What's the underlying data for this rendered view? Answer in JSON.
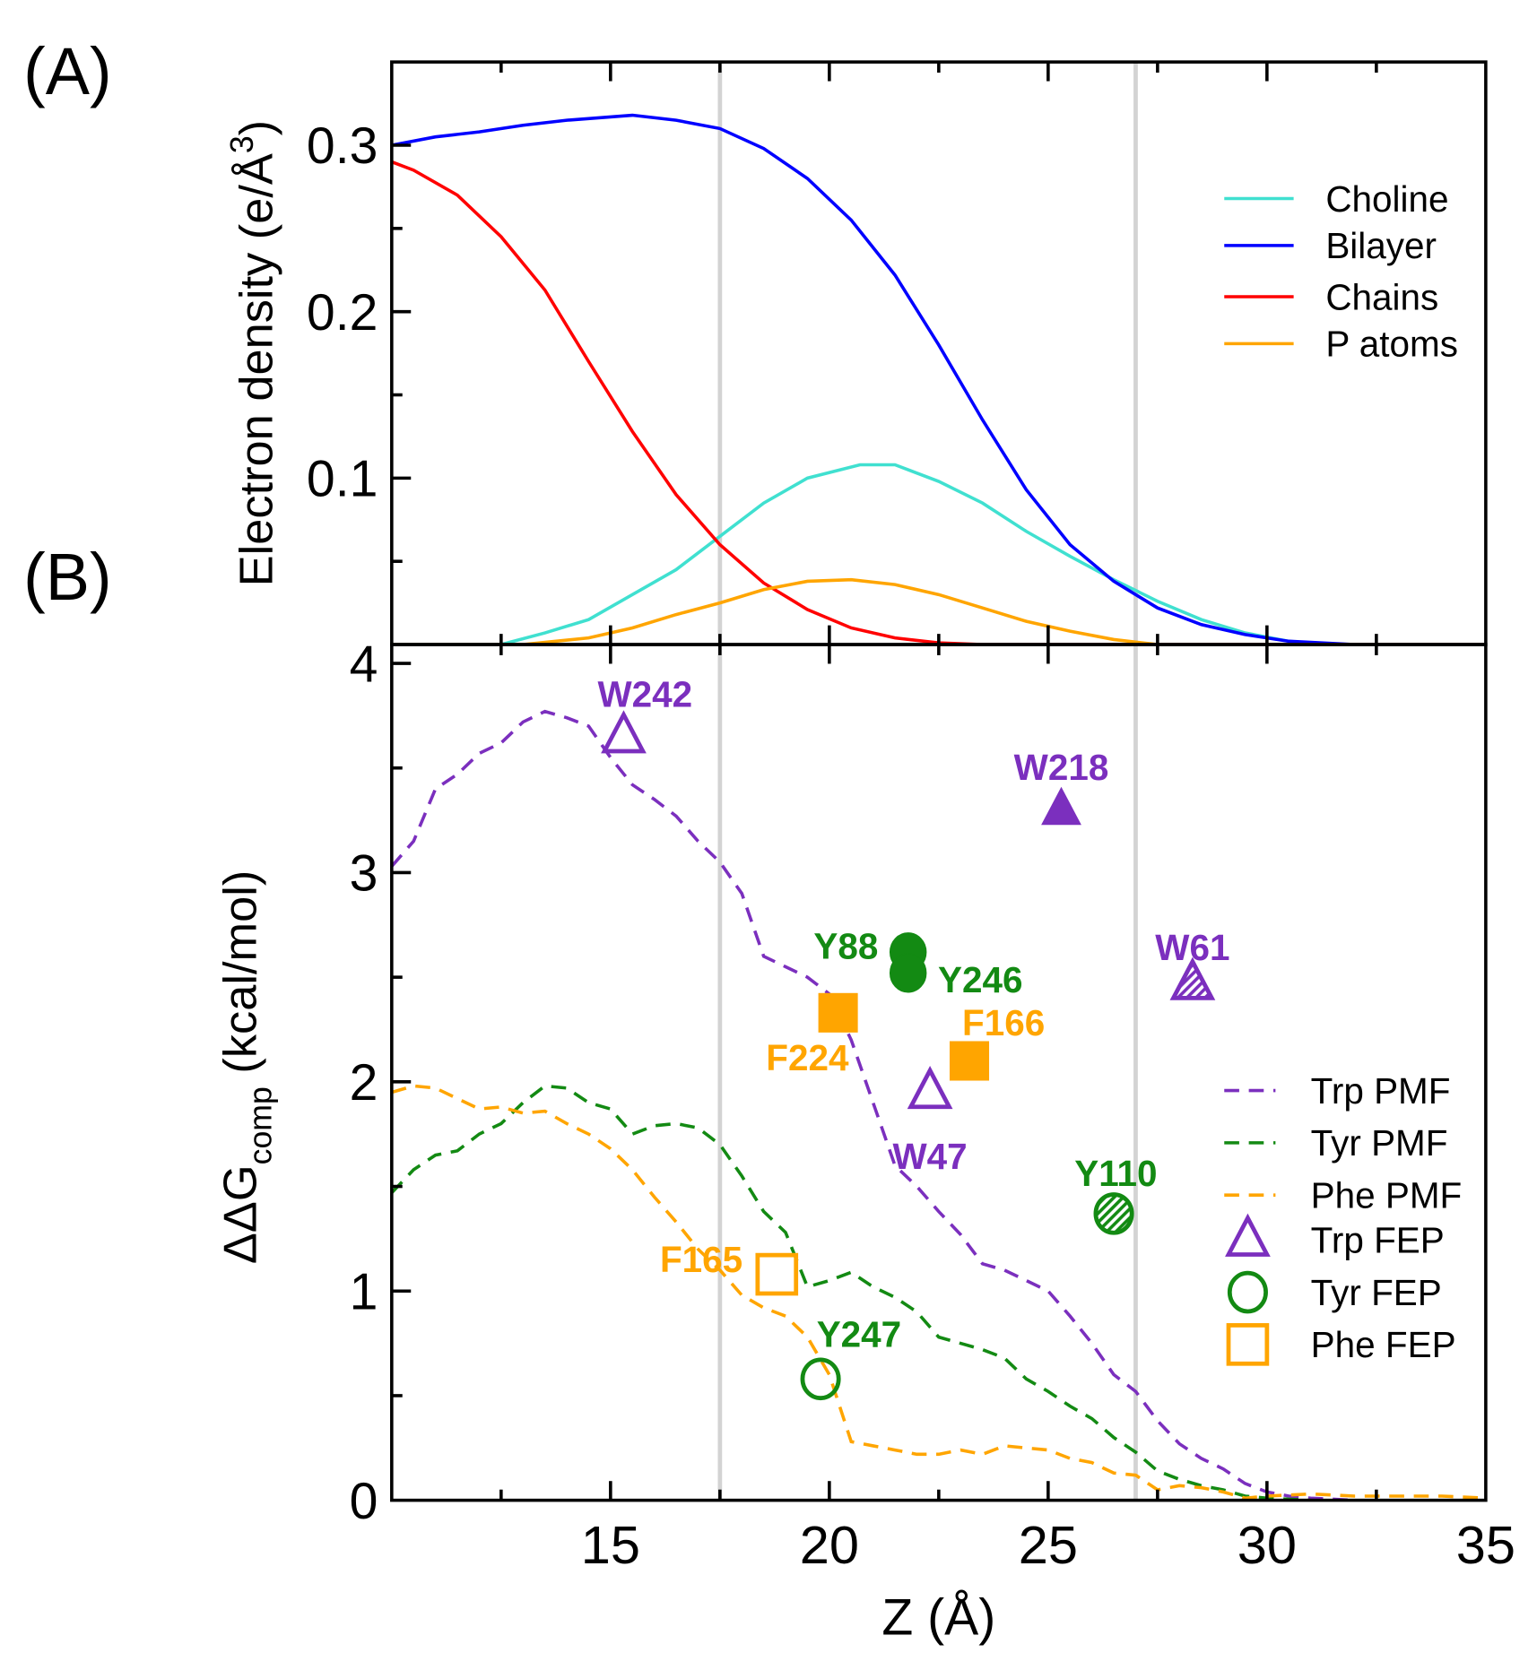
{
  "chart_data": [
    {
      "panel_label": "(A)",
      "type": "line",
      "ylabel": "Electron density (e/Å",
      "ylabel_sup": "3",
      "ylabel_close": ")",
      "xlim": [
        10,
        35
      ],
      "ylim": [
        0,
        0.35
      ],
      "yticks": [
        0.1,
        0.2,
        0.3
      ],
      "ytick_labels": [
        "0.1",
        "0.2",
        "0.3"
      ],
      "vertical_lines": [
        17.5,
        27
      ],
      "legend_position": "top-right",
      "series": [
        {
          "name": "Choline",
          "color": "#40e0d0",
          "points": [
            [
              10,
              0
            ],
            [
              12.5,
              0
            ],
            [
              13.5,
              0.007
            ],
            [
              14.5,
              0.015
            ],
            [
              15.5,
              0.03
            ],
            [
              16.5,
              0.045
            ],
            [
              17.5,
              0.065
            ],
            [
              18.5,
              0.085
            ],
            [
              19.5,
              0.1
            ],
            [
              20.7,
              0.108
            ],
            [
              21.5,
              0.108
            ],
            [
              22.5,
              0.098
            ],
            [
              23.5,
              0.085
            ],
            [
              24.5,
              0.068
            ],
            [
              25.5,
              0.053
            ],
            [
              26.5,
              0.039
            ],
            [
              27.5,
              0.026
            ],
            [
              28.5,
              0.015
            ],
            [
              29.5,
              0.007
            ],
            [
              30.5,
              0.002
            ],
            [
              31.5,
              0
            ],
            [
              35,
              0
            ]
          ]
        },
        {
          "name": "Bilayer",
          "color": "#0000ff",
          "points": [
            [
              10,
              0.3
            ],
            [
              11,
              0.305
            ],
            [
              12,
              0.308
            ],
            [
              13,
              0.312
            ],
            [
              14,
              0.315
            ],
            [
              15.5,
              0.318
            ],
            [
              16.5,
              0.315
            ],
            [
              17.5,
              0.31
            ],
            [
              18.5,
              0.298
            ],
            [
              19.5,
              0.28
            ],
            [
              20.5,
              0.255
            ],
            [
              21.5,
              0.222
            ],
            [
              22.5,
              0.18
            ],
            [
              23.5,
              0.135
            ],
            [
              24.5,
              0.093
            ],
            [
              25.5,
              0.06
            ],
            [
              26.5,
              0.038
            ],
            [
              27.5,
              0.022
            ],
            [
              28.5,
              0.012
            ],
            [
              29.5,
              0.006
            ],
            [
              30.5,
              0.002
            ],
            [
              32,
              0
            ],
            [
              35,
              0
            ]
          ]
        },
        {
          "name": "Chains",
          "color": "#ff0000",
          "points": [
            [
              10,
              0.29
            ],
            [
              10.5,
              0.285
            ],
            [
              11.5,
              0.27
            ],
            [
              12.5,
              0.245
            ],
            [
              13.5,
              0.213
            ],
            [
              14.5,
              0.17
            ],
            [
              15.5,
              0.128
            ],
            [
              16.5,
              0.09
            ],
            [
              17.5,
              0.06
            ],
            [
              18.5,
              0.037
            ],
            [
              19.5,
              0.021
            ],
            [
              20.5,
              0.01
            ],
            [
              21.5,
              0.004
            ],
            [
              22.5,
              0.001
            ],
            [
              23.5,
              0
            ],
            [
              35,
              0
            ]
          ]
        },
        {
          "name": "P atoms",
          "color": "#ffa500",
          "points": [
            [
              10,
              0
            ],
            [
              13,
              0
            ],
            [
              14.5,
              0.004
            ],
            [
              15.5,
              0.01
            ],
            [
              16.5,
              0.018
            ],
            [
              17.5,
              0.025
            ],
            [
              18.5,
              0.033
            ],
            [
              19.5,
              0.038
            ],
            [
              20.5,
              0.039
            ],
            [
              21.5,
              0.036
            ],
            [
              22.5,
              0.03
            ],
            [
              23.5,
              0.022
            ],
            [
              24.5,
              0.014
            ],
            [
              25.5,
              0.008
            ],
            [
              26.5,
              0.003
            ],
            [
              27.5,
              0
            ],
            [
              35,
              0
            ]
          ]
        }
      ]
    },
    {
      "panel_label": "(B)",
      "type": "line",
      "ylabel": "ΔΔG",
      "ylabel_sub": "comp",
      "ylabel_units": " (kcal/mol)",
      "xlabel": "Z (Å)",
      "xlim": [
        10,
        35
      ],
      "ylim": [
        0,
        4.09
      ],
      "xticks": [
        15,
        20,
        25,
        30,
        35
      ],
      "xtick_labels": [
        "15",
        "20",
        "25",
        "30",
        "35"
      ],
      "yticks": [
        0,
        1,
        2,
        3,
        4
      ],
      "ytick_labels": [
        "0",
        "1",
        "2",
        "3",
        "4"
      ],
      "vertical_lines": [
        17.5,
        27
      ],
      "legend_position": "bottom-right",
      "series": [
        {
          "name": "Trp PMF",
          "color": "#7b2fbe",
          "dashed": true,
          "points": [
            [
              10,
              3.03
            ],
            [
              10.5,
              3.15
            ],
            [
              11,
              3.4
            ],
            [
              11.5,
              3.47
            ],
            [
              12,
              3.57
            ],
            [
              12.5,
              3.62
            ],
            [
              13,
              3.72
            ],
            [
              13.5,
              3.77
            ],
            [
              14,
              3.74
            ],
            [
              14.5,
              3.7
            ],
            [
              15,
              3.55
            ],
            [
              15.5,
              3.42
            ],
            [
              16,
              3.35
            ],
            [
              16.5,
              3.27
            ],
            [
              17,
              3.15
            ],
            [
              17.5,
              3.05
            ],
            [
              18,
              2.9
            ],
            [
              18.5,
              2.6
            ],
            [
              19,
              2.55
            ],
            [
              19.5,
              2.5
            ],
            [
              20,
              2.42
            ],
            [
              20.5,
              2.2
            ],
            [
              21,
              1.9
            ],
            [
              21.5,
              1.6
            ],
            [
              22,
              1.5
            ],
            [
              22.5,
              1.38
            ],
            [
              23,
              1.27
            ],
            [
              23.5,
              1.13
            ],
            [
              24,
              1.1
            ],
            [
              24.5,
              1.05
            ],
            [
              25,
              1.0
            ],
            [
              25.5,
              0.88
            ],
            [
              26,
              0.75
            ],
            [
              26.5,
              0.6
            ],
            [
              27,
              0.52
            ],
            [
              27.5,
              0.38
            ],
            [
              28,
              0.27
            ],
            [
              28.5,
              0.2
            ],
            [
              29,
              0.15
            ],
            [
              29.5,
              0.08
            ],
            [
              30,
              0.04
            ],
            [
              30.5,
              0.02
            ],
            [
              31,
              0.01
            ],
            [
              32,
              0
            ]
          ]
        },
        {
          "name": "Tyr PMF",
          "color": "#138a13",
          "dashed": true,
          "points": [
            [
              10,
              1.47
            ],
            [
              10.5,
              1.58
            ],
            [
              11,
              1.65
            ],
            [
              11.5,
              1.67
            ],
            [
              12,
              1.75
            ],
            [
              12.5,
              1.8
            ],
            [
              13,
              1.9
            ],
            [
              13.5,
              1.98
            ],
            [
              14,
              1.97
            ],
            [
              14.5,
              1.9
            ],
            [
              15,
              1.87
            ],
            [
              15.5,
              1.75
            ],
            [
              16,
              1.79
            ],
            [
              16.5,
              1.8
            ],
            [
              17,
              1.78
            ],
            [
              17.5,
              1.7
            ],
            [
              18,
              1.55
            ],
            [
              18.5,
              1.38
            ],
            [
              19,
              1.28
            ],
            [
              19.5,
              1.02
            ],
            [
              20,
              1.05
            ],
            [
              20.5,
              1.09
            ],
            [
              21,
              1.02
            ],
            [
              21.5,
              0.97
            ],
            [
              22,
              0.9
            ],
            [
              22.5,
              0.78
            ],
            [
              23,
              0.75
            ],
            [
              23.5,
              0.72
            ],
            [
              24,
              0.68
            ],
            [
              24.5,
              0.58
            ],
            [
              25,
              0.52
            ],
            [
              25.5,
              0.45
            ],
            [
              26,
              0.39
            ],
            [
              26.5,
              0.3
            ],
            [
              27,
              0.23
            ],
            [
              27.5,
              0.14
            ],
            [
              28,
              0.1
            ],
            [
              28.5,
              0.07
            ],
            [
              29,
              0.05
            ],
            [
              29.5,
              0.02
            ],
            [
              30,
              0.01
            ],
            [
              31,
              0
            ]
          ]
        },
        {
          "name": "Phe PMF",
          "color": "#ffa500",
          "dashed": true,
          "points": [
            [
              10,
              1.95
            ],
            [
              10.5,
              1.98
            ],
            [
              11,
              1.97
            ],
            [
              11.5,
              1.92
            ],
            [
              12,
              1.87
            ],
            [
              12.5,
              1.88
            ],
            [
              13,
              1.85
            ],
            [
              13.5,
              1.86
            ],
            [
              14,
              1.8
            ],
            [
              14.5,
              1.75
            ],
            [
              15,
              1.68
            ],
            [
              15.5,
              1.58
            ],
            [
              16,
              1.45
            ],
            [
              16.5,
              1.33
            ],
            [
              17,
              1.2
            ],
            [
              17.5,
              1.1
            ],
            [
              18,
              0.98
            ],
            [
              18.5,
              0.92
            ],
            [
              19,
              0.88
            ],
            [
              19.5,
              0.78
            ],
            [
              20,
              0.6
            ],
            [
              20.5,
              0.28
            ],
            [
              21,
              0.26
            ],
            [
              21.5,
              0.24
            ],
            [
              22,
              0.22
            ],
            [
              22.5,
              0.22
            ],
            [
              23,
              0.24
            ],
            [
              23.5,
              0.22
            ],
            [
              24,
              0.26
            ],
            [
              24.5,
              0.25
            ],
            [
              25,
              0.24
            ],
            [
              25.5,
              0.2
            ],
            [
              26,
              0.18
            ],
            [
              26.5,
              0.13
            ],
            [
              27,
              0.12
            ],
            [
              27.5,
              0.05
            ],
            [
              28,
              0.07
            ],
            [
              28.5,
              0.06
            ],
            [
              29,
              0.04
            ],
            [
              29.5,
              0.01
            ],
            [
              30,
              0.02
            ],
            [
              31,
              0.03
            ],
            [
              32,
              0.02
            ],
            [
              34,
              0.02
            ],
            [
              35,
              0.01
            ]
          ]
        }
      ],
      "fep_legend": [
        {
          "name": "Trp FEP",
          "marker": "triangle",
          "color": "#7b2fbe"
        },
        {
          "name": "Tyr FEP",
          "marker": "circle",
          "color": "#138a13"
        },
        {
          "name": "Phe FEP",
          "marker": "square",
          "color": "#ffa500"
        }
      ],
      "points": [
        {
          "label": "W242",
          "x": 15.3,
          "y": 3.65,
          "marker": "triangle",
          "fill": "open",
          "color": "#7b2fbe"
        },
        {
          "label": "W218",
          "x": 25.3,
          "y": 3.3,
          "marker": "triangle",
          "fill": "filled",
          "color": "#7b2fbe"
        },
        {
          "label": "W61",
          "x": 28.3,
          "y": 2.47,
          "marker": "triangle",
          "fill": "hatched",
          "color": "#7b2fbe"
        },
        {
          "label": "W47",
          "x": 22.3,
          "y": 1.95,
          "marker": "triangle",
          "fill": "open",
          "color": "#7b2fbe"
        },
        {
          "label": "Y88",
          "x": 21.8,
          "y": 2.62,
          "marker": "circle",
          "fill": "filled",
          "color": "#138a13"
        },
        {
          "label": "Y246",
          "x": 21.8,
          "y": 2.52,
          "marker": "circle",
          "fill": "filled",
          "color": "#138a13"
        },
        {
          "label": "Y110",
          "x": 26.5,
          "y": 1.37,
          "marker": "circle",
          "fill": "hatched",
          "color": "#138a13"
        },
        {
          "label": "Y247",
          "x": 19.8,
          "y": 0.58,
          "marker": "circle",
          "fill": "open",
          "color": "#138a13"
        },
        {
          "label": "F224",
          "x": 20.2,
          "y": 2.33,
          "marker": "square",
          "fill": "filled",
          "color": "#ffa500"
        },
        {
          "label": "F166",
          "x": 23.2,
          "y": 2.1,
          "marker": "square",
          "fill": "filled",
          "color": "#ffa500"
        },
        {
          "label": "F165",
          "x": 18.8,
          "y": 1.08,
          "marker": "square",
          "fill": "open",
          "color": "#ffa500"
        }
      ]
    }
  ]
}
